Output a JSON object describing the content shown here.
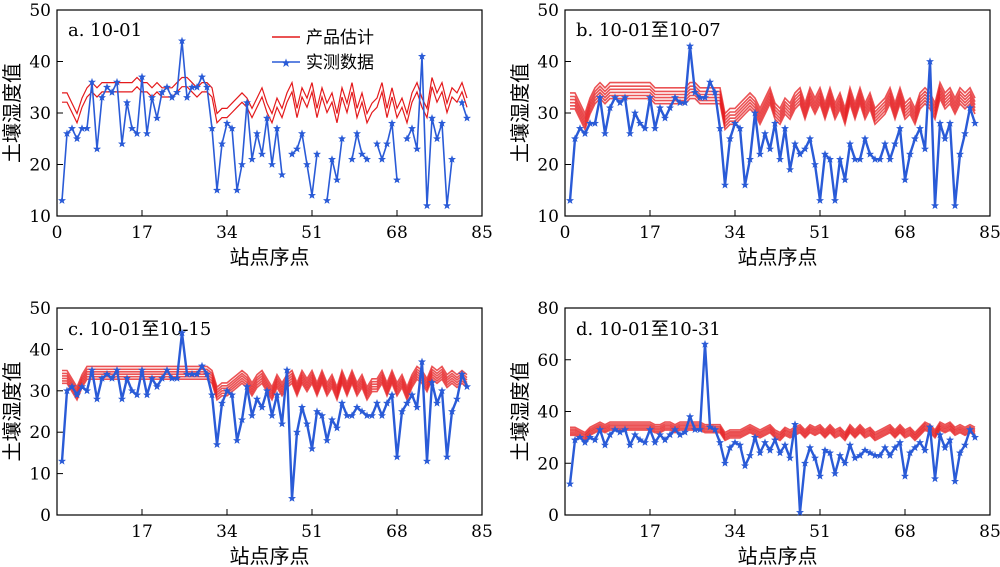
{
  "colors": {
    "estimate": "#e41a1c",
    "observed": "#2a5bd7"
  },
  "legend": {
    "estimate": "产品估计",
    "observed": "实测数据"
  },
  "chart_data": [
    {
      "type": "line",
      "title": "a. 10-01",
      "xlabel": "站点序点",
      "ylabel": "土壤湿度值",
      "xlim": [
        0,
        85
      ],
      "ylim": [
        10,
        50
      ],
      "xticks": [
        0,
        17,
        34,
        51,
        68,
        85
      ],
      "yticks": [
        10,
        20,
        30,
        40,
        50
      ],
      "legend": "top-center",
      "series": [
        {
          "name": "产品估计",
          "role": "estimate",
          "values": [
            33,
            33,
            31,
            29,
            32,
            34,
            35,
            34,
            35,
            35,
            35,
            35,
            35,
            35,
            35,
            36,
            35,
            35,
            34,
            35,
            34,
            34,
            34,
            35,
            36,
            36,
            35,
            34,
            35,
            35,
            34,
            29,
            30,
            30,
            31,
            32,
            33,
            32,
            30,
            32,
            34,
            31,
            29,
            32,
            30,
            33,
            35,
            30,
            34,
            32,
            35,
            30,
            34,
            31,
            33,
            29,
            34,
            31,
            35,
            30,
            33,
            29,
            31,
            32,
            35,
            30,
            34,
            30,
            32,
            29,
            33,
            35,
            32,
            30,
            36,
            33,
            35,
            31,
            34,
            33,
            35,
            32
          ]
        },
        {
          "name": "实测数据",
          "role": "observed",
          "values": [
            13,
            26,
            27,
            25,
            27,
            27,
            36,
            23,
            33,
            35,
            34,
            36,
            24,
            32,
            27,
            26,
            37,
            26,
            33,
            29,
            34,
            35,
            33,
            34,
            44,
            33,
            35,
            35,
            37,
            35,
            27,
            15,
            24,
            28,
            27,
            15,
            20,
            32,
            21,
            26,
            22,
            29,
            20,
            27,
            18,
            null,
            22,
            23,
            26,
            20,
            14,
            22,
            null,
            13,
            21,
            17,
            25,
            null,
            21,
            26,
            22,
            21,
            null,
            24,
            21,
            24,
            28,
            17,
            null,
            25,
            27,
            23,
            41,
            12,
            29,
            25,
            28,
            12,
            21,
            null,
            32,
            29
          ]
        }
      ]
    },
    {
      "type": "line",
      "title": "b. 10-01至10-07",
      "xlabel": "站点序点",
      "ylabel": "土壤湿度值",
      "xlim": [
        0,
        85
      ],
      "ylim": [
        10,
        50
      ],
      "xticks": [
        0,
        17,
        34,
        51,
        68,
        85
      ],
      "yticks": [
        10,
        20,
        30,
        40,
        50
      ],
      "series": [
        {
          "name": "产品估计",
          "role": "estimate",
          "values": [
            32,
            32,
            30,
            28,
            31,
            33,
            34,
            33,
            34,
            34,
            34,
            34,
            34,
            34,
            34,
            34,
            34,
            33,
            33,
            33,
            33,
            33,
            33,
            33,
            34,
            34,
            33,
            33,
            33,
            33,
            33,
            28,
            29,
            29,
            30,
            31,
            32,
            31,
            29,
            31,
            33,
            30,
            29,
            31,
            30,
            32,
            33,
            30,
            33,
            31,
            33,
            30,
            33,
            30,
            32,
            29,
            33,
            30,
            33,
            30,
            32,
            29,
            30,
            31,
            33,
            30,
            33,
            30,
            31,
            29,
            32,
            33,
            32,
            30,
            34,
            32,
            33,
            31,
            33,
            32,
            33,
            31
          ]
        },
        {
          "name": "实测数据",
          "role": "observed",
          "values": [
            13,
            25,
            27,
            26,
            28,
            28,
            33,
            26,
            31,
            33,
            32,
            33,
            26,
            30,
            28,
            27,
            33,
            27,
            31,
            29,
            31,
            33,
            32,
            32,
            43,
            34,
            33,
            33,
            36,
            34,
            27,
            16,
            25,
            28,
            27,
            16,
            21,
            30,
            22,
            26,
            23,
            28,
            21,
            27,
            19,
            24,
            22,
            23,
            25,
            20,
            13,
            22,
            21,
            13,
            21,
            17,
            24,
            21,
            21,
            25,
            22,
            21,
            21,
            24,
            21,
            24,
            27,
            17,
            22,
            25,
            27,
            23,
            40,
            12,
            28,
            25,
            28,
            12,
            22,
            26,
            31,
            28
          ]
        }
      ]
    },
    {
      "type": "line",
      "title": "c. 10-01至10-15",
      "xlabel": "站点序点",
      "ylabel": "土壤湿度值",
      "xlim": [
        0,
        85
      ],
      "ylim": [
        0,
        50
      ],
      "xticks": [
        17,
        34,
        51,
        68,
        85
      ],
      "yticks": [
        0,
        10,
        20,
        30,
        40,
        50
      ],
      "series": [
        {
          "name": "产品估计",
          "role": "estimate",
          "values": [
            33,
            33,
            31,
            29,
            32,
            34,
            34,
            34,
            34,
            34,
            34,
            34,
            34,
            34,
            34,
            34,
            34,
            34,
            34,
            34,
            34,
            34,
            34,
            34,
            34,
            34,
            34,
            34,
            34,
            34,
            33,
            29,
            30,
            30,
            31,
            32,
            33,
            32,
            30,
            32,
            33,
            31,
            29,
            32,
            30,
            32,
            33,
            30,
            33,
            31,
            33,
            30,
            33,
            30,
            32,
            29,
            33,
            30,
            33,
            30,
            32,
            29,
            31,
            31,
            33,
            30,
            33,
            30,
            32,
            29,
            32,
            34,
            33,
            31,
            34,
            33,
            34,
            32,
            33,
            32,
            33,
            32
          ]
        },
        {
          "name": "实测数据",
          "role": "observed",
          "values": [
            13,
            30,
            31,
            29,
            31,
            30,
            35,
            28,
            33,
            34,
            33,
            35,
            28,
            33,
            30,
            29,
            35,
            29,
            33,
            31,
            33,
            35,
            33,
            33,
            44,
            34,
            34,
            34,
            36,
            34,
            29,
            17,
            27,
            30,
            29,
            18,
            23,
            31,
            24,
            28,
            26,
            30,
            24,
            29,
            22,
            35,
            4,
            20,
            26,
            22,
            16,
            25,
            24,
            18,
            23,
            21,
            27,
            24,
            24,
            26,
            25,
            24,
            24,
            27,
            24,
            27,
            29,
            14,
            25,
            27,
            29,
            26,
            37,
            13,
            32,
            27,
            30,
            14,
            25,
            28,
            34,
            31
          ]
        }
      ]
    },
    {
      "type": "line",
      "title": "d. 10-01至10-31",
      "xlabel": "站点序点",
      "ylabel": "土壤湿度值",
      "xlim": [
        0,
        85
      ],
      "ylim": [
        0,
        80
      ],
      "xticks": [
        17,
        34,
        51,
        68,
        85
      ],
      "yticks": [
        0,
        20,
        40,
        60,
        80
      ],
      "series": [
        {
          "name": "产品估计",
          "role": "estimate",
          "values": [
            32,
            32,
            31,
            30,
            32,
            33,
            34,
            33,
            34,
            34,
            34,
            34,
            34,
            34,
            34,
            34,
            34,
            33,
            33,
            34,
            34,
            33,
            34,
            34,
            34,
            34,
            34,
            33,
            33,
            33,
            33,
            30,
            31,
            31,
            31,
            32,
            33,
            32,
            31,
            32,
            33,
            31,
            30,
            32,
            31,
            32,
            33,
            31,
            33,
            32,
            33,
            31,
            33,
            31,
            32,
            30,
            33,
            31,
            33,
            31,
            32,
            30,
            31,
            32,
            33,
            31,
            33,
            31,
            32,
            30,
            32,
            34,
            33,
            31,
            34,
            33,
            34,
            32,
            33,
            32,
            33,
            32
          ]
        },
        {
          "name": "实测数据",
          "role": "observed",
          "values": [
            12,
            29,
            30,
            28,
            30,
            29,
            33,
            27,
            31,
            33,
            32,
            33,
            27,
            31,
            29,
            28,
            33,
            28,
            31,
            29,
            31,
            33,
            31,
            32,
            38,
            33,
            33,
            66,
            34,
            33,
            28,
            20,
            26,
            28,
            27,
            19,
            23,
            30,
            24,
            28,
            25,
            29,
            24,
            27,
            22,
            35,
            1,
            20,
            26,
            22,
            15,
            25,
            24,
            16,
            23,
            20,
            27,
            22,
            23,
            25,
            24,
            23,
            23,
            26,
            23,
            26,
            28,
            15,
            24,
            26,
            28,
            25,
            34,
            14,
            31,
            26,
            29,
            13,
            24,
            27,
            33,
            30
          ]
        }
      ]
    }
  ]
}
